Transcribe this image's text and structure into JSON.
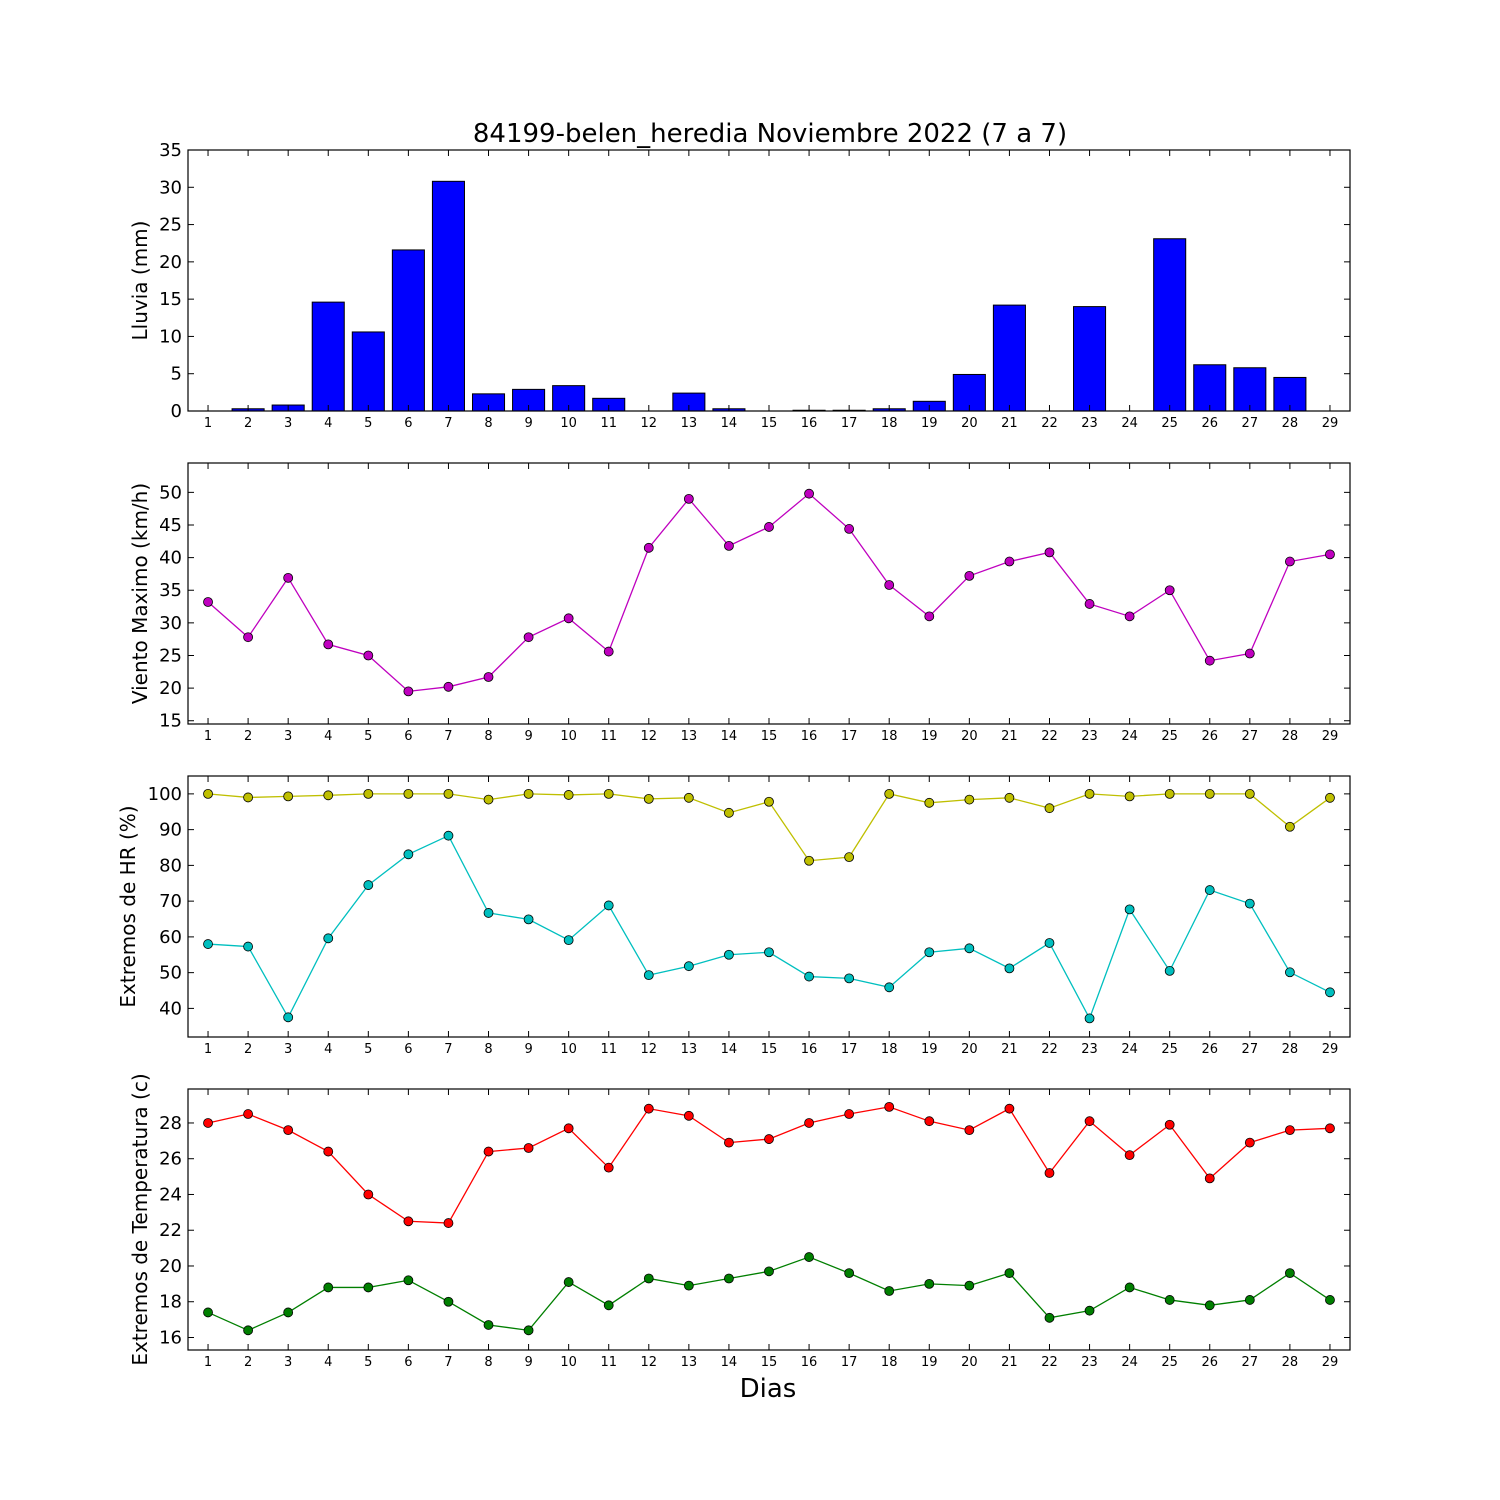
{
  "figure": {
    "title": "84199-belen_heredia Noviembre 2022  (7 a 7)",
    "xlabel": "Dias"
  },
  "chart_data": [
    {
      "type": "bar",
      "ylabel": "Lluvia (mm)",
      "ylim": [
        0,
        35
      ],
      "yticks": [
        0,
        5,
        10,
        15,
        20,
        25,
        30,
        35
      ],
      "xlim": [
        0.5,
        29.5
      ],
      "x": [
        1,
        2,
        3,
        4,
        5,
        6,
        7,
        8,
        9,
        10,
        11,
        12,
        13,
        14,
        15,
        16,
        17,
        18,
        19,
        20,
        21,
        22,
        23,
        24,
        25,
        26,
        27,
        28,
        29
      ],
      "series": [
        {
          "color": "#0000ff",
          "values": [
            0.0,
            0.3,
            0.8,
            14.6,
            10.6,
            21.6,
            30.8,
            2.3,
            2.9,
            3.4,
            1.7,
            0.0,
            2.4,
            0.3,
            0.0,
            0.1,
            0.1,
            0.3,
            1.3,
            4.9,
            14.2,
            0.0,
            14.0,
            0.0,
            23.1,
            6.2,
            5.8,
            4.5,
            0.0
          ]
        }
      ]
    },
    {
      "type": "line",
      "ylabel": "Viento Maximo (km/h)",
      "ylim": [
        14.5,
        54.5
      ],
      "yticks": [
        15,
        20,
        25,
        30,
        35,
        40,
        45,
        50
      ],
      "xlim": [
        0.5,
        29.5
      ],
      "x": [
        1,
        2,
        3,
        4,
        5,
        6,
        7,
        8,
        9,
        10,
        11,
        12,
        13,
        14,
        15,
        16,
        17,
        18,
        19,
        20,
        21,
        22,
        23,
        24,
        25,
        26,
        27,
        28,
        29
      ],
      "series": [
        {
          "color": "#bf00bf",
          "values": [
            33.2,
            27.8,
            36.9,
            26.7,
            25.0,
            19.5,
            20.2,
            21.7,
            27.8,
            30.7,
            25.6,
            41.5,
            49.0,
            41.8,
            44.7,
            49.8,
            44.4,
            35.8,
            31.0,
            37.2,
            39.4,
            40.8,
            32.9,
            31.0,
            35.0,
            24.2,
            25.3,
            39.4,
            40.5
          ]
        }
      ]
    },
    {
      "type": "line",
      "ylabel": "Extremos de HR (%)",
      "ylim": [
        32,
        105
      ],
      "yticks": [
        40,
        50,
        60,
        70,
        80,
        90,
        100
      ],
      "xlim": [
        0.5,
        29.5
      ],
      "x": [
        1,
        2,
        3,
        4,
        5,
        6,
        7,
        8,
        9,
        10,
        11,
        12,
        13,
        14,
        15,
        16,
        17,
        18,
        19,
        20,
        21,
        22,
        23,
        24,
        25,
        26,
        27,
        28,
        29
      ],
      "series": [
        {
          "color": "#bfbf00",
          "values": [
            100,
            99,
            99.3,
            99.6,
            100,
            100,
            100,
            98.4,
            100,
            99.7,
            100,
            98.6,
            98.9,
            94.7,
            97.8,
            81.3,
            82.3,
            100,
            97.5,
            98.4,
            98.9,
            96.0,
            100,
            99.3,
            100,
            100,
            100,
            90.8,
            98.9
          ]
        },
        {
          "color": "#00bfbf",
          "values": [
            58,
            57.3,
            37.5,
            59.6,
            74.5,
            83.1,
            88.3,
            66.7,
            64.9,
            59.1,
            68.8,
            49.3,
            51.8,
            55.0,
            55.7,
            48.9,
            48.4,
            45.9,
            55.7,
            56.8,
            51.2,
            58.3,
            37.2,
            67.7,
            50.5,
            73.1,
            69.3,
            50.1,
            44.5
          ]
        }
      ]
    },
    {
      "type": "line",
      "ylabel": "Extremos de Temperatura (c)",
      "ylim": [
        15.3,
        29.9
      ],
      "yticks": [
        16,
        18,
        20,
        22,
        24,
        26,
        28
      ],
      "xlim": [
        0.5,
        29.5
      ],
      "x": [
        1,
        2,
        3,
        4,
        5,
        6,
        7,
        8,
        9,
        10,
        11,
        12,
        13,
        14,
        15,
        16,
        17,
        18,
        19,
        20,
        21,
        22,
        23,
        24,
        25,
        26,
        27,
        28,
        29
      ],
      "series": [
        {
          "color": "#ff0000",
          "values": [
            28.0,
            28.5,
            27.6,
            26.4,
            24.0,
            22.5,
            22.4,
            26.4,
            26.6,
            27.7,
            25.5,
            28.8,
            28.4,
            26.9,
            27.1,
            28.0,
            28.5,
            28.9,
            28.1,
            27.6,
            28.8,
            25.2,
            28.1,
            26.2,
            27.9,
            24.9,
            26.9,
            27.6,
            27.7
          ]
        },
        {
          "color": "#007f00",
          "values": [
            17.4,
            16.4,
            17.4,
            18.8,
            18.8,
            19.2,
            18.0,
            16.7,
            16.4,
            19.1,
            17.8,
            19.3,
            18.9,
            19.3,
            19.7,
            20.5,
            19.6,
            18.6,
            19.0,
            18.9,
            19.6,
            17.1,
            17.5,
            18.8,
            18.1,
            17.8,
            18.1,
            19.6,
            18.1
          ]
        }
      ]
    }
  ]
}
